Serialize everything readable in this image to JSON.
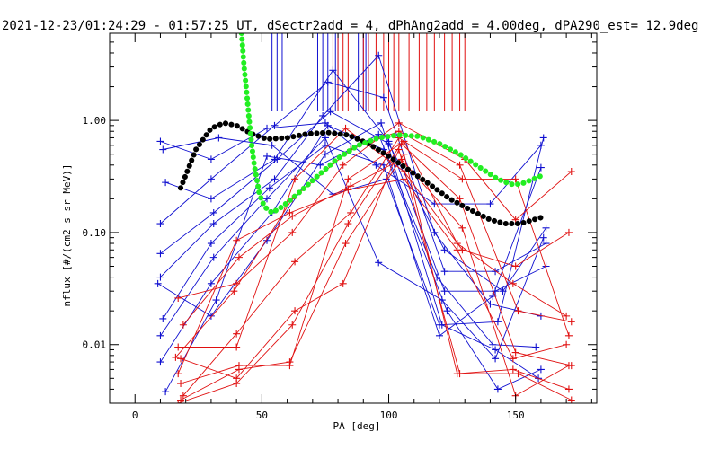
{
  "chart_data": {
    "type": "scatter",
    "title": "2021-12-23/01:24:29 - 01:57:25 UT, dSectr2add = 4, dPhAng2add = 4.00deg, dPA290_est=  12.9deg",
    "xlabel": "PA [deg]",
    "ylabel": "nflux [#/(cm2 s sr MeV)]",
    "xlim": [
      -10,
      182
    ],
    "ylim": [
      0.003,
      6.0
    ],
    "yscale": "log",
    "x_ticks": [
      0,
      50,
      100,
      150
    ],
    "x_tick_labels": [
      "0",
      "50",
      "100",
      "150"
    ],
    "y_ticks": [
      0.01,
      0.1,
      1.0
    ],
    "y_tick_labels": [
      "0.01",
      "0.10",
      "1.00"
    ],
    "grid": false,
    "colors": {
      "blue": "#1010d0",
      "red": "#e01010",
      "green": "#22ee22",
      "black": "#000000"
    },
    "blue_marker_pa": [
      54,
      56,
      58,
      72,
      74,
      76,
      79,
      80,
      88,
      90,
      91,
      92
    ],
    "red_marker_pa": [
      78,
      80,
      82,
      84,
      90,
      92,
      95,
      98,
      100,
      102,
      104,
      108,
      112,
      115,
      118,
      122,
      125,
      128,
      130
    ],
    "series": [
      {
        "color": "blue",
        "points": [
          [
            10,
            0.65
          ],
          [
            30,
            0.45
          ],
          [
            52,
            0.85
          ],
          [
            75,
            0.95
          ],
          [
            95,
            0.4
          ],
          [
            118,
            0.18
          ],
          [
            140,
            0.18
          ],
          [
            160,
            0.6
          ]
        ]
      },
      {
        "color": "blue",
        "points": [
          [
            12,
            0.28
          ],
          [
            30,
            0.2
          ],
          [
            55,
            0.45
          ],
          [
            78,
            2.8
          ],
          [
            100,
            0.65
          ],
          [
            122,
            0.03
          ],
          [
            142,
            0.03
          ],
          [
            162,
            0.05
          ]
        ]
      },
      {
        "color": "blue",
        "points": [
          [
            10,
            0.12
          ],
          [
            30,
            0.3
          ],
          [
            55,
            0.9
          ],
          [
            76,
            2.2
          ],
          [
            98,
            1.6
          ],
          [
            122,
            0.045
          ],
          [
            142,
            0.045
          ],
          [
            162,
            0.08
          ]
        ]
      },
      {
        "color": "blue",
        "points": [
          [
            10,
            0.065
          ],
          [
            31,
            0.15
          ],
          [
            56,
            0.45
          ],
          [
            77,
            1.2
          ],
          [
            100,
            0.62
          ],
          [
            122,
            0.07
          ],
          [
            145,
            0.03
          ],
          [
            162,
            0.11
          ]
        ]
      },
      {
        "color": "blue",
        "points": [
          [
            10,
            0.04
          ],
          [
            31,
            0.12
          ],
          [
            55,
            0.3
          ],
          [
            74,
            1.1
          ],
          [
            96,
            3.8
          ],
          [
            118,
            0.1
          ],
          [
            140,
            0.023
          ],
          [
            160,
            0.018
          ]
        ]
      },
      {
        "color": "blue",
        "points": [
          [
            11,
            0.017
          ],
          [
            30,
            0.08
          ],
          [
            53,
            0.25
          ],
          [
            75,
            0.6
          ],
          [
            98,
            0.4
          ],
          [
            120,
            0.012
          ],
          [
            141,
            0.027
          ],
          [
            160,
            0.38
          ]
        ]
      },
      {
        "color": "blue",
        "points": [
          [
            10,
            0.012
          ],
          [
            31,
            0.06
          ],
          [
            52,
            0.2
          ],
          [
            75,
            0.7
          ],
          [
            96,
            0.054
          ],
          [
            121,
            0.025
          ],
          [
            142,
            0.0075
          ],
          [
            161,
            0.09
          ]
        ]
      },
      {
        "color": "blue",
        "points": [
          [
            10,
            0.007
          ],
          [
            30,
            0.035
          ],
          [
            54,
            0.15
          ],
          [
            76,
            0.9
          ],
          [
            98,
            0.55
          ],
          [
            123,
            0.02
          ],
          [
            143,
            0.004
          ],
          [
            160,
            0.006
          ]
        ]
      },
      {
        "color": "blue",
        "points": [
          [
            12,
            0.0038
          ],
          [
            32,
            0.025
          ],
          [
            52,
            0.48
          ],
          [
            73,
            0.4
          ],
          [
            96,
            0.75
          ],
          [
            119,
            0.04
          ],
          [
            141,
            0.01
          ],
          [
            158,
            0.0095
          ]
        ]
      },
      {
        "color": "blue",
        "points": [
          [
            11,
            0.55
          ],
          [
            33,
            0.7
          ],
          [
            54,
            0.6
          ],
          [
            78,
            0.22
          ],
          [
            99,
            0.3
          ],
          [
            120,
            0.015
          ],
          [
            143,
            0.016
          ],
          [
            161,
            0.7
          ]
        ]
      },
      {
        "color": "blue",
        "points": [
          [
            9,
            0.035
          ],
          [
            30,
            0.018
          ],
          [
            52,
            0.085
          ],
          [
            75,
            0.5
          ],
          [
            97,
            0.95
          ],
          [
            121,
            0.015
          ],
          [
            142,
            0.009
          ],
          [
            159,
            0.005
          ]
        ]
      },
      {
        "color": "red",
        "points": [
          [
            17,
            0.026
          ],
          [
            40,
            0.035
          ],
          [
            62,
            0.1
          ],
          [
            82,
            0.4
          ],
          [
            104,
            0.95
          ],
          [
            130,
            0.45
          ],
          [
            150,
            0.13
          ],
          [
            172,
            0.35
          ]
        ]
      },
      {
        "color": "red",
        "points": [
          [
            17,
            0.0095
          ],
          [
            40,
            0.0095
          ],
          [
            63,
            0.3
          ],
          [
            83,
            0.85
          ],
          [
            106,
            0.35
          ],
          [
            129,
            0.07
          ],
          [
            150,
            0.05
          ],
          [
            171,
            0.1
          ]
        ]
      },
      {
        "color": "red",
        "points": [
          [
            16,
            0.0077
          ],
          [
            39,
            0.03
          ],
          [
            62,
            0.2
          ],
          [
            85,
            0.55
          ],
          [
            104,
            0.8
          ],
          [
            128,
            0.4
          ],
          [
            151,
            0.02
          ],
          [
            172,
            0.016
          ]
        ]
      },
      {
        "color": "red",
        "points": [
          [
            18,
            0.0045
          ],
          [
            41,
            0.0065
          ],
          [
            61,
            0.0065
          ],
          [
            84,
            0.3
          ],
          [
            106,
            0.65
          ],
          [
            127,
            0.08
          ],
          [
            149,
            0.035
          ],
          [
            170,
            0.018
          ]
        ]
      },
      {
        "color": "red",
        "points": [
          [
            19,
            0.0035
          ],
          [
            40,
            0.0125
          ],
          [
            63,
            0.055
          ],
          [
            85,
            0.15
          ],
          [
            104,
            0.7
          ],
          [
            129,
            0.3
          ],
          [
            150,
            0.3
          ],
          [
            171,
            0.012
          ]
        ]
      },
      {
        "color": "red",
        "points": [
          [
            17,
            0.003
          ],
          [
            40,
            0.0045
          ],
          [
            62,
            0.015
          ],
          [
            84,
            0.12
          ],
          [
            105,
            0.62
          ],
          [
            128,
            0.2
          ],
          [
            150,
            0.0085
          ],
          [
            172,
            0.0065
          ]
        ]
      },
      {
        "color": "red",
        "points": [
          [
            18,
            0.0032
          ],
          [
            41,
            0.006
          ],
          [
            61,
            0.007
          ],
          [
            83,
            0.08
          ],
          [
            106,
            0.5
          ],
          [
            127,
            0.0055
          ],
          [
            149,
            0.006
          ],
          [
            171,
            0.004
          ]
        ]
      },
      {
        "color": "red",
        "points": [
          [
            18,
            0.0075
          ],
          [
            40,
            0.005
          ],
          [
            63,
            0.02
          ],
          [
            82,
            0.035
          ],
          [
            104,
            0.55
          ],
          [
            128,
            0.0055
          ],
          [
            151,
            0.0055
          ],
          [
            172,
            0.0032
          ]
        ]
      },
      {
        "color": "red",
        "points": [
          [
            19,
            0.015
          ],
          [
            41,
            0.06
          ],
          [
            62,
            0.14
          ],
          [
            85,
            0.26
          ],
          [
            105,
            0.45
          ],
          [
            129,
            0.11
          ],
          [
            150,
            0.0035
          ],
          [
            171,
            0.0065
          ]
        ]
      },
      {
        "color": "red",
        "points": [
          [
            17,
            0.0055
          ],
          [
            40,
            0.085
          ],
          [
            61,
            0.15
          ],
          [
            84,
            0.24
          ],
          [
            106,
            0.3
          ],
          [
            127,
            0.07
          ],
          [
            149,
            0.0075
          ],
          [
            170,
            0.01
          ]
        ]
      }
    ],
    "black_curve": [
      [
        18,
        0.25
      ],
      [
        24,
        0.55
      ],
      [
        30,
        0.85
      ],
      [
        35,
        0.95
      ],
      [
        40,
        0.9
      ],
      [
        46,
        0.76
      ],
      [
        52,
        0.68
      ],
      [
        60,
        0.7
      ],
      [
        68,
        0.76
      ],
      [
        76,
        0.78
      ],
      [
        84,
        0.74
      ],
      [
        92,
        0.62
      ],
      [
        100,
        0.48
      ],
      [
        108,
        0.36
      ],
      [
        116,
        0.27
      ],
      [
        124,
        0.2
      ],
      [
        132,
        0.16
      ],
      [
        140,
        0.13
      ],
      [
        146,
        0.12
      ],
      [
        152,
        0.12
      ],
      [
        157,
        0.13
      ],
      [
        162,
        0.14
      ]
    ],
    "green_curve": [
      [
        42,
        6.0
      ],
      [
        43,
        3.0
      ],
      [
        44,
        1.8
      ],
      [
        45,
        1.0
      ],
      [
        46,
        0.6
      ],
      [
        47,
        0.4
      ],
      [
        48,
        0.3
      ],
      [
        49,
        0.22
      ],
      [
        51,
        0.17
      ],
      [
        54,
        0.15
      ],
      [
        58,
        0.17
      ],
      [
        64,
        0.22
      ],
      [
        72,
        0.32
      ],
      [
        80,
        0.46
      ],
      [
        88,
        0.6
      ],
      [
        96,
        0.7
      ],
      [
        104,
        0.74
      ],
      [
        112,
        0.72
      ],
      [
        120,
        0.62
      ],
      [
        128,
        0.5
      ],
      [
        136,
        0.38
      ],
      [
        143,
        0.3
      ],
      [
        148,
        0.27
      ],
      [
        152,
        0.27
      ],
      [
        157,
        0.3
      ],
      [
        160,
        0.32
      ]
    ]
  }
}
